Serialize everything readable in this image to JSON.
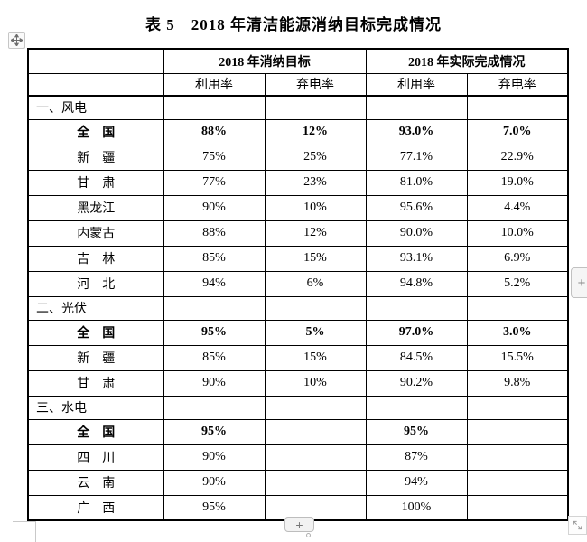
{
  "title": "表 5　2018 年清洁能源消纳目标完成情况",
  "table": {
    "group_headers": [
      "2018 年消纳目标",
      "2018 年实际完成情况"
    ],
    "sub_headers": [
      "利用率",
      "弃电率",
      "利用率",
      "弃电率"
    ],
    "sections": [
      {
        "label": "一、风电",
        "rows": [
          {
            "label": "全　国",
            "bold": true,
            "values": [
              "88%",
              "12%",
              "93.0%",
              "7.0%"
            ]
          },
          {
            "label": "新　疆",
            "bold": false,
            "values": [
              "75%",
              "25%",
              "77.1%",
              "22.9%"
            ]
          },
          {
            "label": "甘　肃",
            "bold": false,
            "values": [
              "77%",
              "23%",
              "81.0%",
              "19.0%"
            ]
          },
          {
            "label": "黑龙江",
            "bold": false,
            "values": [
              "90%",
              "10%",
              "95.6%",
              "4.4%"
            ]
          },
          {
            "label": "内蒙古",
            "bold": false,
            "values": [
              "88%",
              "12%",
              "90.0%",
              "10.0%"
            ]
          },
          {
            "label": "吉　林",
            "bold": false,
            "values": [
              "85%",
              "15%",
              "93.1%",
              "6.9%"
            ]
          },
          {
            "label": "河　北",
            "bold": false,
            "values": [
              "94%",
              "6%",
              "94.8%",
              "5.2%"
            ]
          }
        ]
      },
      {
        "label": "二、光伏",
        "rows": [
          {
            "label": "全　国",
            "bold": true,
            "values": [
              "95%",
              "5%",
              "97.0%",
              "3.0%"
            ]
          },
          {
            "label": "新　疆",
            "bold": false,
            "values": [
              "85%",
              "15%",
              "84.5%",
              "15.5%"
            ]
          },
          {
            "label": "甘　肃",
            "bold": false,
            "values": [
              "90%",
              "10%",
              "90.2%",
              "9.8%"
            ]
          }
        ]
      },
      {
        "label": "三、水电",
        "rows": [
          {
            "label": "全　国",
            "bold": true,
            "values": [
              "95%",
              "",
              "95%",
              ""
            ]
          },
          {
            "label": "四　川",
            "bold": false,
            "values": [
              "90%",
              "",
              "87%",
              ""
            ]
          },
          {
            "label": "云　南",
            "bold": false,
            "values": [
              "90%",
              "",
              "94%",
              ""
            ]
          },
          {
            "label": "广　西",
            "bold": false,
            "values": [
              "95%",
              "",
              "100%",
              ""
            ]
          }
        ]
      }
    ]
  },
  "controls": {
    "plus_label": "+",
    "move_handle_icon": "move-cross-icon",
    "resize_handle_icon": "diagonal-resize-icon"
  },
  "colors": {
    "table_border": "#000000",
    "text": "#000000",
    "control_bg": "#f2f2f2",
    "control_border": "#c1c1c1",
    "control_glyph": "#8a8a8a",
    "crop_mark": "#c9c9c9",
    "page_bg": "#ffffff"
  }
}
